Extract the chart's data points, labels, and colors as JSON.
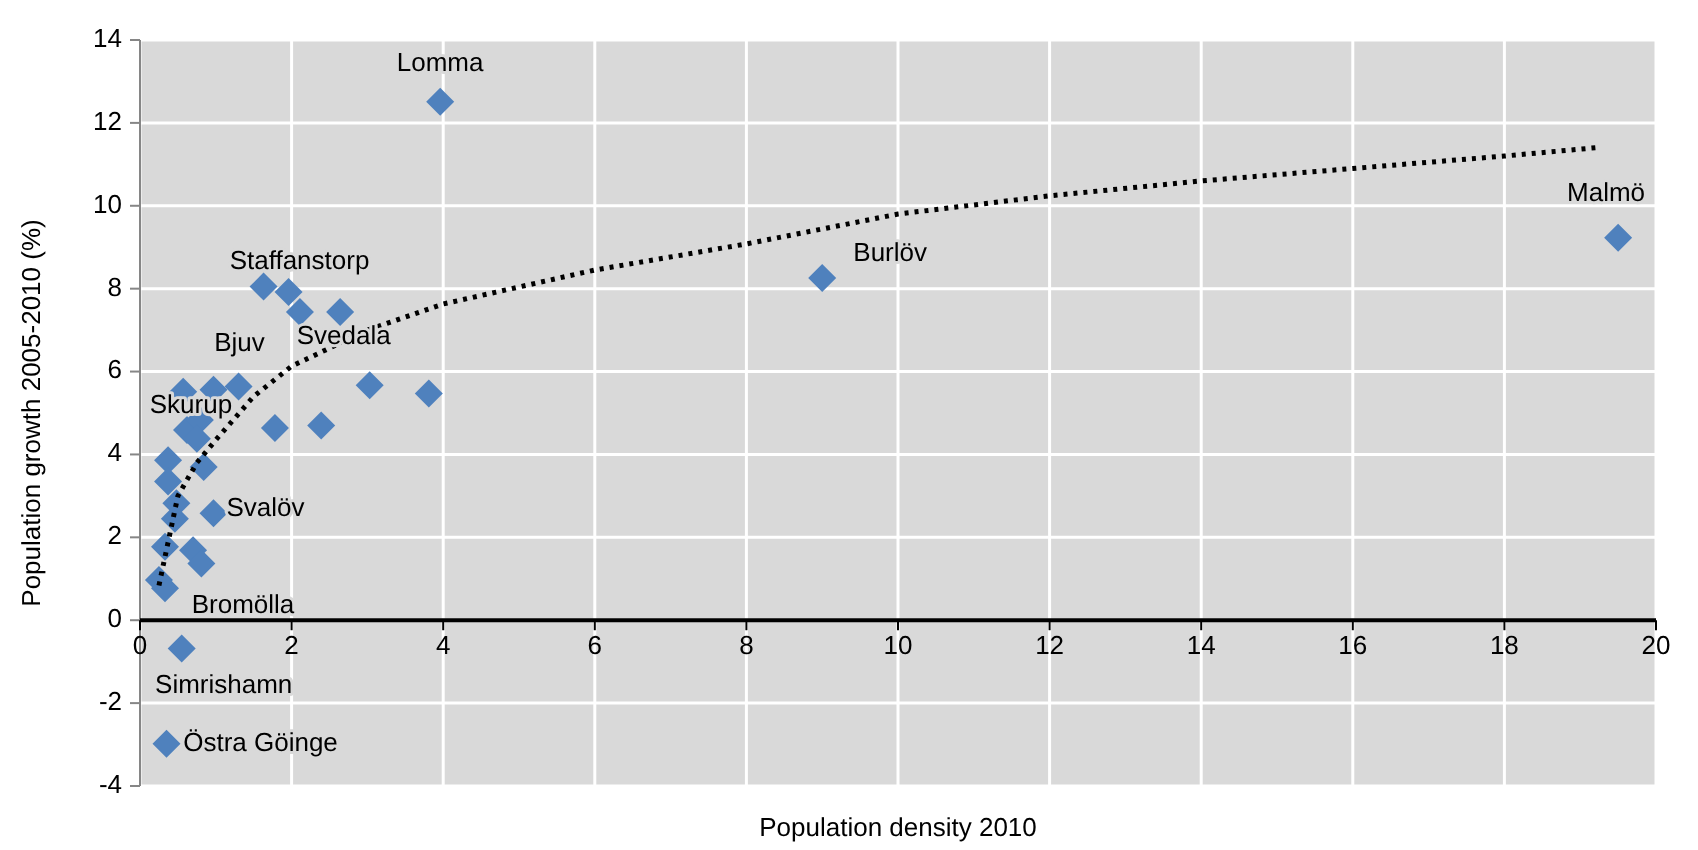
{
  "chart_data": {
    "type": "scatter",
    "xlabel": "Population density 2010",
    "ylabel": "Population growth 2005-2010 (%)",
    "xlim": [
      0,
      20
    ],
    "xticks": [
      0,
      2,
      4,
      6,
      8,
      10,
      12,
      14,
      16,
      18,
      20
    ],
    "ylim": [
      -4,
      14
    ],
    "yticks": [
      -4,
      -2,
      0,
      2,
      4,
      6,
      8,
      10,
      12,
      14
    ],
    "grid": true,
    "series": [
      {
        "color": "#4f81bd",
        "marker": "diamond",
        "x": [
          1.63,
          1.96,
          2.11,
          2.64,
          0.57,
          0.97,
          1.3,
          3.03,
          3.81,
          1.78,
          2.39,
          0.62,
          0.79,
          0.75,
          0.84,
          0.37,
          0.37,
          0.48,
          0.46,
          0.97,
          0.33,
          0.7,
          0.81,
          0.25,
          0.33,
          0.55,
          0.35,
          3.96,
          9.0,
          19.5
        ],
        "values": [
          8.05,
          7.92,
          7.44,
          7.44,
          5.51,
          5.56,
          5.64,
          5.67,
          5.47,
          4.64,
          4.7,
          4.59,
          4.83,
          4.38,
          3.7,
          3.86,
          3.35,
          2.82,
          2.45,
          2.58,
          1.77,
          1.69,
          1.37,
          0.97,
          0.77,
          -0.68,
          -2.98,
          12.51,
          8.26,
          9.23
        ]
      },
      {
        "type": "line",
        "color": "#000000",
        "marker": "none",
        "line_style": "dotted",
        "x": [
          0.25,
          0.5,
          0.75,
          1,
          1.5,
          2,
          3,
          4,
          6,
          8,
          10,
          12,
          14,
          16,
          18,
          19.2
        ],
        "values": [
          0.84,
          3.0,
          3.8,
          4.35,
          5.4,
          6.13,
          7.0,
          7.63,
          8.45,
          9.08,
          9.8,
          10.24,
          10.6,
          10.9,
          11.2,
          11.4
        ]
      }
    ],
    "annotations": [
      {
        "text": "Lomma",
        "x": 3.96,
        "y": 12.51
      },
      {
        "text": "Staffanstorp",
        "x": 1.63,
        "y": 8.05
      },
      {
        "text": "Bjuv",
        "x": 0.97,
        "y": 5.56
      },
      {
        "text": "Svedala",
        "x": 3.03,
        "y": 5.67
      },
      {
        "text": "Skurup",
        "x": 0.62,
        "y": 4.59
      },
      {
        "text": "Svalöv",
        "x": 0.97,
        "y": 2.58
      },
      {
        "text": "Bromölla",
        "x": 0.33,
        "y": 0.77
      },
      {
        "text": "Simrishamn",
        "x": 0.55,
        "y": -0.68
      },
      {
        "text": "Östra Göinge",
        "x": 0.35,
        "y": -2.98
      },
      {
        "text": "Burlöv",
        "x": 9.0,
        "y": 8.26
      },
      {
        "text": "Malmö",
        "x": 19.5,
        "y": 9.23
      }
    ]
  }
}
